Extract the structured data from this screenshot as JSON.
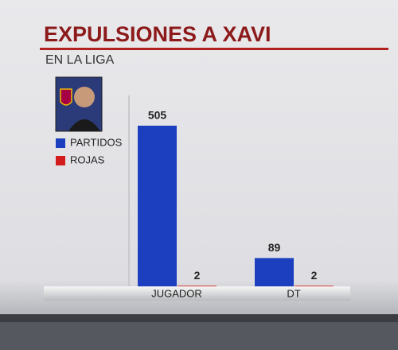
{
  "chart_data": {
    "type": "bar",
    "title": "EXPULSIONES A XAVI",
    "subtitle": "EN LA LIGA",
    "categories": [
      "JUGADOR",
      "DT"
    ],
    "series": [
      {
        "name": "PARTIDOS",
        "color": "#1c3fbf",
        "values": [
          505,
          89
        ]
      },
      {
        "name": "ROJAS",
        "color": "#d21c1c",
        "values": [
          2,
          2
        ]
      }
    ]
  }
}
